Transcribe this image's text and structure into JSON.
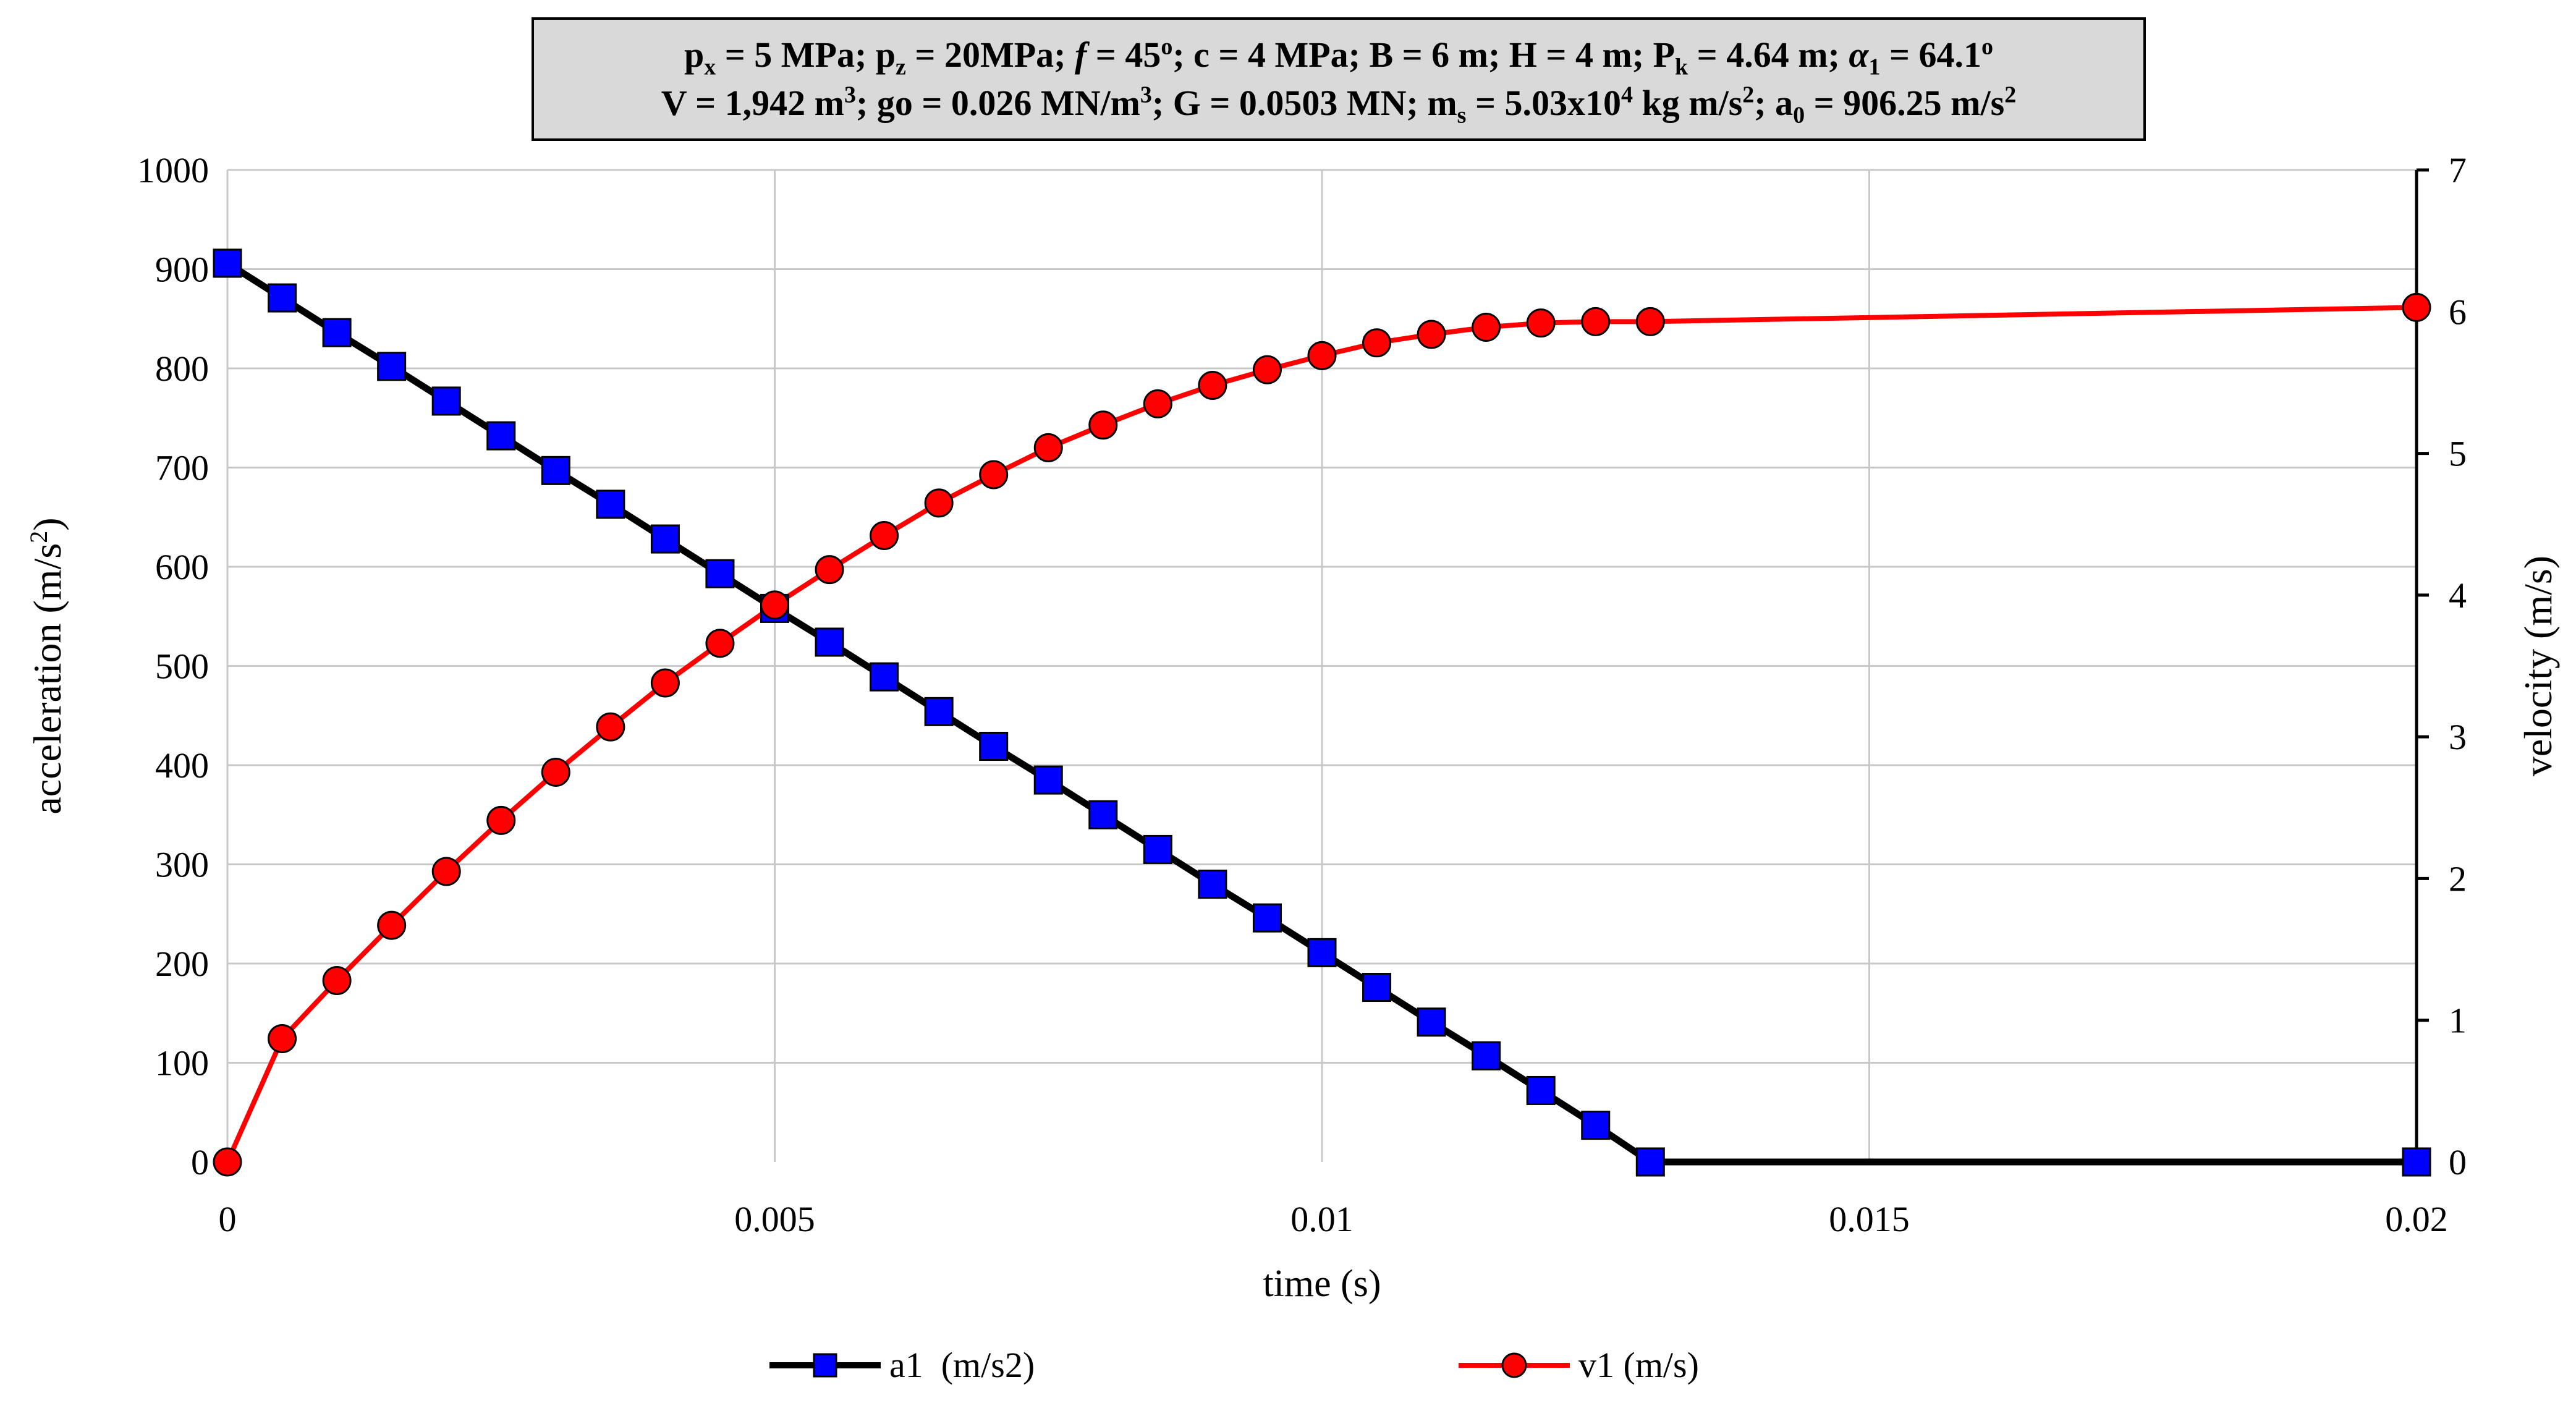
{
  "chart_data": {
    "type": "line",
    "title": {
      "line1": [
        {
          "t": "p"
        },
        {
          "t": "x",
          "sub": true
        },
        {
          "t": " = 5 MPa; p"
        },
        {
          "t": "z",
          "sub": true
        },
        {
          "t": " = 20MPa; "
        },
        {
          "t": "f",
          "italic": true
        },
        {
          "t": " = 45"
        },
        {
          "t": "o",
          "sup": true
        },
        {
          "t": "; c = 4 MPa; B = 6 m; H = 4 m; P"
        },
        {
          "t": "k",
          "sub": true
        },
        {
          "t": " = 4.64 m; "
        },
        {
          "t": "α",
          "italic": true
        },
        {
          "t": "1",
          "sub": true
        },
        {
          "t": " = 64.1"
        },
        {
          "t": "o",
          "sup": true
        }
      ],
      "line2": [
        {
          "t": "V = 1,942 m"
        },
        {
          "t": "3",
          "sup": true
        },
        {
          "t": "; go = 0.026 MN/m"
        },
        {
          "t": "3",
          "sup": true
        },
        {
          "t": "; G = 0.0503 MN; m"
        },
        {
          "t": "s",
          "sub": true
        },
        {
          "t": " = 5.03x10"
        },
        {
          "t": "4",
          "sup": true
        },
        {
          "t": " kg m/s"
        },
        {
          "t": "2",
          "sup": true
        },
        {
          "t": "; a"
        },
        {
          "t": "0",
          "sub": true
        },
        {
          "t": " = 906.25 m/s"
        },
        {
          "t": "2",
          "sup": true
        }
      ]
    },
    "xlabel": "time (s)",
    "ylabel_left": {
      "text": "acceleration  (m/s",
      "sup": "2",
      "tail": ")"
    },
    "ylabel_right": "velocity  (m/s)",
    "xlim": [
      0,
      0.02
    ],
    "xticks": [
      0,
      0.005,
      0.01,
      0.015,
      0.02
    ],
    "xtick_labels": [
      "0",
      "0.005",
      "0.01",
      "0.015",
      "0.02"
    ],
    "ylim_left": [
      0,
      1000
    ],
    "yticks_left": [
      0,
      100,
      200,
      300,
      400,
      500,
      600,
      700,
      800,
      900,
      1000
    ],
    "ylim_right": [
      0,
      7
    ],
    "yticks_right": [
      0,
      1,
      2,
      3,
      4,
      5,
      6,
      7
    ],
    "grid": true,
    "series": [
      {
        "name": "a1  (m/s2)",
        "axis": "left",
        "line_color": "#000000",
        "marker": "square",
        "marker_color": "#0000ff",
        "x": [
          0,
          0.0005,
          0.001,
          0.0015,
          0.002,
          0.0025,
          0.003,
          0.0035,
          0.004,
          0.0045,
          0.005,
          0.0055,
          0.006,
          0.0065,
          0.007,
          0.0075,
          0.008,
          0.0085,
          0.009,
          0.0095,
          0.01,
          0.0105,
          0.011,
          0.0115,
          0.012,
          0.0125,
          0.013,
          0.02
        ],
        "values": [
          906,
          871,
          836,
          802,
          767,
          732,
          697,
          663,
          628,
          593,
          558,
          524,
          489,
          454,
          419,
          385,
          350,
          315,
          280,
          246,
          211,
          176,
          141,
          107,
          72,
          37,
          0,
          0
        ]
      },
      {
        "name": "v1 (m/s)",
        "axis": "right",
        "line_color": "#ff0000",
        "marker": "circle",
        "marker_color": "#ff0000",
        "x": [
          0,
          0.0005,
          0.001,
          0.0015,
          0.002,
          0.0025,
          0.003,
          0.0035,
          0.004,
          0.0045,
          0.005,
          0.0055,
          0.006,
          0.0065,
          0.007,
          0.0075,
          0.008,
          0.0085,
          0.009,
          0.0095,
          0.01,
          0.0105,
          0.011,
          0.0115,
          0.012,
          0.0125,
          0.013,
          0.02
        ],
        "values": [
          0,
          0.87,
          1.28,
          1.67,
          2.05,
          2.41,
          2.75,
          3.07,
          3.38,
          3.66,
          3.93,
          4.18,
          4.42,
          4.65,
          4.85,
          5.04,
          5.2,
          5.35,
          5.48,
          5.59,
          5.69,
          5.78,
          5.84,
          5.89,
          5.92,
          5.93,
          5.93,
          6.03
        ]
      }
    ]
  }
}
